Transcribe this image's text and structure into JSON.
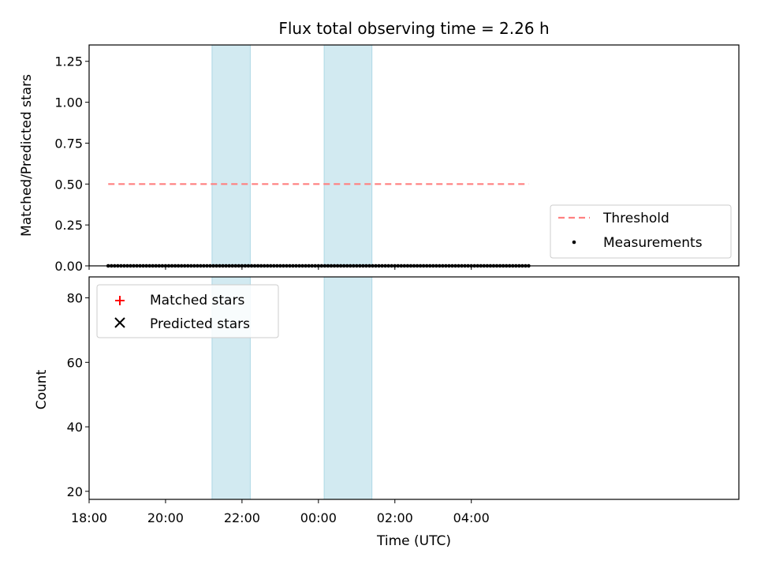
{
  "chart_data": {
    "type": "scatter",
    "title": "Flux total observing time = 2.26 h",
    "xlabel": "Time (UTC)",
    "x_ticks": [
      "18:00",
      "20:00",
      "22:00",
      "00:00",
      "02:00",
      "04:00"
    ],
    "shaded_intervals": [
      [
        "21:13",
        "22:13"
      ],
      [
        "00:09",
        "01:24"
      ]
    ],
    "colors": {
      "shade": "#add8e6",
      "threshold": "#ff8080",
      "measurements": "#000000",
      "matched": "#ff0000",
      "predicted": "#000000"
    },
    "panels": [
      {
        "ylabel": "Matched/Predicted stars",
        "ylim": [
          0,
          1.35
        ],
        "y_ticks": [
          "0.00",
          "0.25",
          "0.50",
          "0.75",
          "1.00",
          "1.25"
        ],
        "legend_position": "lower-right",
        "series": [
          {
            "name": "Threshold",
            "style": "dashed-line",
            "x": [
              "18:30",
              "05:30"
            ],
            "y": [
              0.5,
              0.5
            ]
          },
          {
            "name": "Measurements",
            "style": "dot",
            "x": [
              "18:30",
              "18:35",
              "18:40",
              "18:45",
              "18:50",
              "18:55",
              "19:00",
              "19:05",
              "19:10",
              "19:15",
              "19:20",
              "19:25",
              "19:30",
              "19:35",
              "19:40",
              "19:45",
              "19:50",
              "19:55",
              "20:00",
              "20:05",
              "20:10",
              "20:15",
              "20:20",
              "20:25",
              "20:30",
              "20:35",
              "20:40",
              "20:45",
              "20:50",
              "20:55",
              "21:00",
              "21:05",
              "21:10",
              "21:15",
              "21:20",
              "21:25",
              "21:30",
              "21:35",
              "21:40",
              "21:45",
              "21:50",
              "21:55",
              "22:00",
              "22:05",
              "22:10",
              "22:15",
              "22:20",
              "22:25",
              "22:30",
              "22:35",
              "22:40",
              "22:45",
              "22:50",
              "22:55",
              "23:00",
              "23:05",
              "23:10",
              "23:15",
              "23:20",
              "23:25",
              "23:30",
              "23:35",
              "23:40",
              "23:45",
              "23:50",
              "23:55",
              "00:00",
              "00:05",
              "00:10",
              "00:15",
              "00:20",
              "00:25",
              "00:30",
              "00:35",
              "00:40",
              "00:45",
              "00:50",
              "00:55",
              "01:00",
              "01:05",
              "01:10",
              "01:15",
              "01:20",
              "01:25",
              "01:30",
              "01:35",
              "01:40",
              "01:45",
              "01:50",
              "01:55",
              "02:00",
              "02:05",
              "02:10",
              "02:15",
              "02:20",
              "02:25",
              "02:30",
              "02:35",
              "02:40",
              "02:45",
              "02:50",
              "02:55",
              "03:00",
              "03:05",
              "03:10",
              "03:15",
              "03:20",
              "03:25",
              "03:30",
              "03:35",
              "03:40",
              "03:45",
              "03:50",
              "03:55",
              "04:00",
              "04:05",
              "04:10",
              "04:15",
              "04:20",
              "04:25",
              "04:30",
              "04:35",
              "04:40",
              "04:45",
              "04:50",
              "04:55",
              "05:00",
              "05:05",
              "05:10",
              "05:15",
              "05:20",
              "05:25",
              "05:30"
            ],
            "y": [
              0,
              0,
              0,
              0,
              0,
              0,
              0,
              0,
              0,
              0,
              0,
              0,
              0,
              0,
              0,
              0,
              0,
              0,
              0,
              0,
              0,
              0,
              0,
              0,
              0,
              0,
              0,
              0,
              0,
              0,
              0,
              0,
              0,
              0,
              0,
              0,
              0,
              0,
              0,
              0,
              0,
              0,
              0,
              0,
              0,
              0,
              0,
              0,
              0,
              0,
              0,
              0,
              0,
              0,
              0,
              0,
              0,
              0,
              0,
              0,
              0,
              0,
              0,
              0,
              0,
              0,
              0,
              0,
              0,
              0,
              0,
              0,
              0,
              0,
              0,
              0,
              0,
              0,
              0,
              0,
              0,
              0,
              0,
              0,
              0,
              0,
              0,
              0,
              0,
              0,
              0,
              0,
              0,
              0,
              0,
              0,
              0,
              0,
              0,
              0,
              0,
              0,
              0,
              0,
              0,
              0,
              0,
              0,
              0,
              0,
              0,
              0,
              0,
              0,
              0,
              0,
              0,
              0,
              0,
              0,
              0,
              0,
              0,
              0,
              0,
              0,
              0,
              0,
              0,
              0,
              0,
              0,
              0
            ]
          }
        ]
      },
      {
        "ylabel": "Count",
        "ylim": [
          17.5,
          86.5
        ],
        "y_ticks": [
          "20",
          "40",
          "60",
          "80"
        ],
        "legend_position": "upper-left",
        "series": [
          {
            "name": "Matched stars",
            "style": "plus",
            "x": [],
            "y": []
          },
          {
            "name": "Predicted stars",
            "style": "x",
            "x": [],
            "y": []
          }
        ]
      }
    ]
  }
}
